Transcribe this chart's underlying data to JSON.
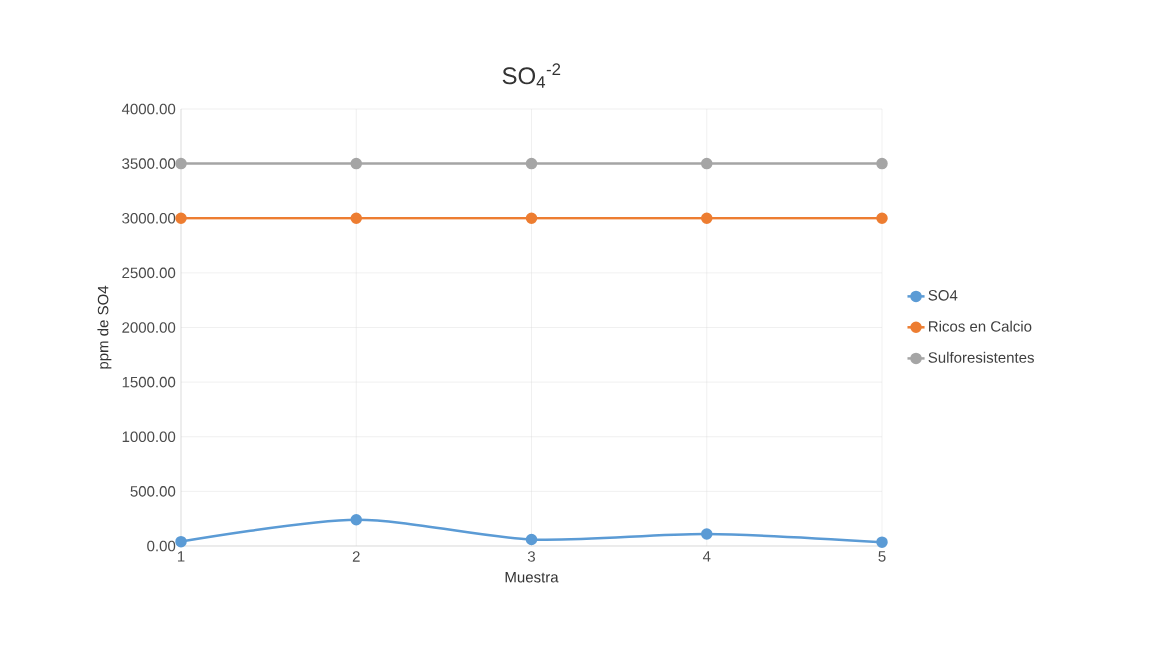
{
  "chart_data": {
    "type": "line",
    "title": "SO$_{4}$$^{-2}$",
    "xlabel": "Muestra",
    "ylabel": "ppm de SO4",
    "categories": [
      "1",
      "2",
      "3",
      "4",
      "5"
    ],
    "series": [
      {
        "name": "SO4",
        "color": "#5b9bd5",
        "values": [
          40,
          240,
          60,
          110,
          35
        ]
      },
      {
        "name": "Ricos en Calcio",
        "color": "#ed7d31",
        "values": [
          3000,
          3000,
          3000,
          3000,
          3000
        ]
      },
      {
        "name": "Sulforesistentes",
        "color": "#a5a5a5",
        "values": [
          3500,
          3500,
          3500,
          3500,
          3500
        ]
      }
    ],
    "ylim": [
      0,
      4000
    ],
    "yticks": [
      {
        "value": 0,
        "label": "0.00"
      },
      {
        "value": 500,
        "label": "500.00"
      },
      {
        "value": 1000,
        "label": "1000.00"
      },
      {
        "value": 1500,
        "label": "1500.00"
      },
      {
        "value": 2000,
        "label": "2000.00"
      },
      {
        "value": 2500,
        "label": "2500.00"
      },
      {
        "value": 3000,
        "label": "3000.00"
      },
      {
        "value": 3500,
        "label": "3500.00"
      },
      {
        "value": 4000,
        "label": "4000.00"
      }
    ],
    "grid": true,
    "legend": "right",
    "marker": "circle"
  }
}
